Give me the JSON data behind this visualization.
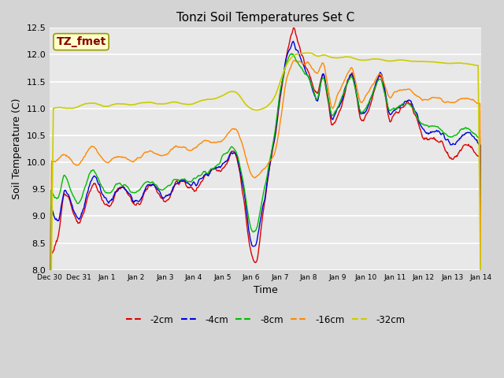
{
  "title": "Tonzi Soil Temperatures Set C",
  "xlabel": "Time",
  "ylabel": "Soil Temperature (C)",
  "ylim": [
    8.0,
    12.5
  ],
  "annotation_text": "TZ_fmet",
  "annotation_bg": "#ffffcc",
  "annotation_border": "#999900",
  "annotation_text_color": "#880000",
  "series_colors": {
    "-2cm": "#dd0000",
    "-4cm": "#0000dd",
    "-8cm": "#00bb00",
    "-16cm": "#ff8800",
    "-32cm": "#cccc00"
  },
  "tick_labels": [
    "Dec 30",
    "Dec 31",
    "Jan 1",
    "Jan 2",
    "Jan 3",
    "Jan 4",
    "Jan 5",
    "Jan 6",
    "Jan 7",
    "Jan 8",
    "Jan 9",
    "Jan 10",
    "Jan 11",
    "Jan 12",
    "Jan 13",
    "Jan 14"
  ],
  "yticks": [
    8.0,
    8.5,
    9.0,
    9.5,
    10.0,
    10.5,
    11.0,
    11.5,
    12.0,
    12.5
  ],
  "fig_bg": "#d4d4d4",
  "plot_bg": "#e8e8e8"
}
